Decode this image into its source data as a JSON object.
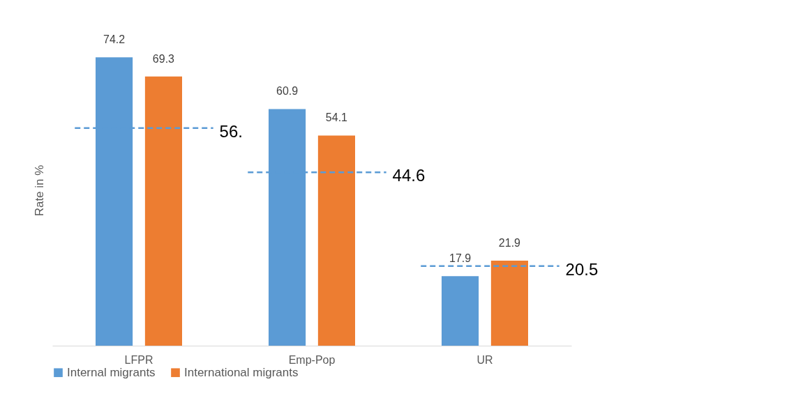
{
  "chart_data": {
    "type": "bar",
    "ylabel": "Rate in %",
    "categories": [
      "LFPR",
      "Emp-Pop",
      "UR"
    ],
    "series": [
      {
        "name": "Internal migrants",
        "color": "#5b9bd5",
        "values": [
          74.2,
          60.9,
          17.9
        ]
      },
      {
        "name": "International migrants",
        "color": "#ed7d31",
        "values": [
          69.3,
          54.1,
          21.9
        ]
      }
    ],
    "data_labels": true,
    "legend": "bottom",
    "grid": false,
    "ref_lines": [
      {
        "axis": "y",
        "value": 56,
        "label": "56.",
        "color": "#5b9bd5",
        "line_style": "dashed"
      },
      {
        "axis": "y",
        "value": 44.6,
        "label": "44.6",
        "color": "#5b9bd5",
        "line_style": "dashed"
      },
      {
        "axis": "y",
        "value": 20.5,
        "label": "20.5",
        "color": "#5b9bd5",
        "line_style": "dashed"
      }
    ]
  }
}
